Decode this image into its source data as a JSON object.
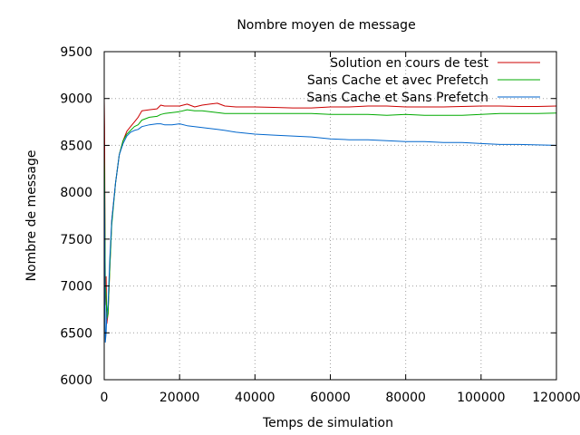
{
  "chart_data": {
    "type": "line",
    "title": "Nombre moyen de message",
    "xlabel": "Temps de simulation",
    "ylabel": "Nombre de message",
    "xlim": [
      0,
      120000
    ],
    "ylim": [
      6000,
      9500
    ],
    "xticks": [
      0,
      20000,
      40000,
      60000,
      80000,
      100000,
      120000
    ],
    "yticks": [
      6000,
      6500,
      7000,
      7500,
      8000,
      8500,
      9000,
      9500
    ],
    "xtick_labels": [
      "0",
      "20000",
      "40000",
      "60000",
      "80000",
      "100000",
      "120000"
    ],
    "ytick_labels": [
      "6000",
      "6500",
      "7000",
      "7500",
      "8000",
      "8500",
      "9000",
      "9500"
    ],
    "grid": true,
    "legend_position": "top-right",
    "series": [
      {
        "name": "Solution en cours de test",
        "color": "#cc0000",
        "x": [
          0,
          100,
          300,
          500,
          700,
          1000,
          1500,
          2000,
          3000,
          4000,
          5000,
          6000,
          7000,
          8000,
          9000,
          10000,
          12000,
          14000,
          15000,
          16000,
          18000,
          20000,
          22000,
          24000,
          26000,
          28000,
          30000,
          32000,
          35000,
          40000,
          45000,
          50000,
          55000,
          60000,
          65000,
          70000,
          75000,
          80000,
          85000,
          90000,
          95000,
          100000,
          105000,
          110000,
          115000,
          120000
        ],
        "y": [
          9000,
          8700,
          6800,
          7100,
          6600,
          6700,
          7200,
          7700,
          8100,
          8400,
          8550,
          8650,
          8700,
          8750,
          8800,
          8870,
          8880,
          8890,
          8930,
          8920,
          8920,
          8920,
          8940,
          8910,
          8930,
          8940,
          8950,
          8920,
          8910,
          8910,
          8905,
          8900,
          8900,
          8910,
          8910,
          8920,
          8920,
          8910,
          8910,
          8910,
          8915,
          8920,
          8920,
          8915,
          8915,
          8920
        ]
      },
      {
        "name": "Sans Cache et avec Prefetch",
        "color": "#00aa00",
        "x": [
          0,
          100,
          300,
          500,
          700,
          1000,
          1500,
          2000,
          3000,
          4000,
          5000,
          6000,
          7000,
          8000,
          9000,
          10000,
          12000,
          14000,
          15000,
          16000,
          18000,
          20000,
          22000,
          24000,
          26000,
          28000,
          30000,
          32000,
          35000,
          40000,
          45000,
          50000,
          55000,
          60000,
          65000,
          70000,
          75000,
          80000,
          85000,
          90000,
          95000,
          100000,
          105000,
          110000,
          115000,
          120000
        ],
        "y": [
          8400,
          8200,
          7000,
          6900,
          6650,
          6700,
          7200,
          7650,
          8100,
          8400,
          8550,
          8620,
          8660,
          8700,
          8720,
          8770,
          8800,
          8810,
          8830,
          8840,
          8850,
          8860,
          8880,
          8870,
          8870,
          8860,
          8850,
          8840,
          8840,
          8840,
          8840,
          8840,
          8840,
          8830,
          8830,
          8830,
          8820,
          8830,
          8820,
          8820,
          8820,
          8830,
          8840,
          8840,
          8840,
          8845
        ]
      },
      {
        "name": "Sans Cache et Sans Prefetch",
        "color": "#0066cc",
        "x": [
          0,
          100,
          300,
          500,
          700,
          1000,
          1500,
          2000,
          3000,
          4000,
          5000,
          6000,
          7000,
          8000,
          9000,
          10000,
          12000,
          14000,
          15000,
          16000,
          18000,
          20000,
          22000,
          24000,
          26000,
          28000,
          30000,
          32000,
          35000,
          40000,
          45000,
          50000,
          55000,
          60000,
          65000,
          70000,
          75000,
          80000,
          85000,
          90000,
          95000,
          100000,
          105000,
          110000,
          115000,
          120000
        ],
        "y": [
          8200,
          7800,
          6400,
          6500,
          6700,
          6800,
          7300,
          7700,
          8100,
          8400,
          8520,
          8600,
          8640,
          8660,
          8670,
          8700,
          8720,
          8730,
          8730,
          8720,
          8720,
          8730,
          8710,
          8700,
          8690,
          8680,
          8670,
          8660,
          8640,
          8620,
          8610,
          8600,
          8590,
          8570,
          8560,
          8560,
          8550,
          8540,
          8540,
          8530,
          8530,
          8520,
          8510,
          8510,
          8505,
          8500
        ]
      }
    ]
  }
}
